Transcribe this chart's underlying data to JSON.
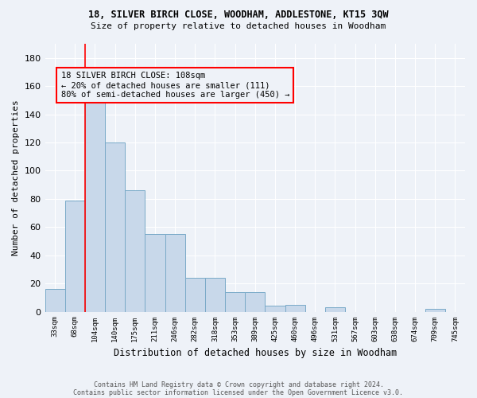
{
  "title1": "18, SILVER BIRCH CLOSE, WOODHAM, ADDLESTONE, KT15 3QW",
  "title2": "Size of property relative to detached houses in Woodham",
  "xlabel": "Distribution of detached houses by size in Woodham",
  "ylabel": "Number of detached properties",
  "bar_color": "#c8d8ea",
  "bar_edge_color": "#7aaac8",
  "categories": [
    "33sqm",
    "68sqm",
    "104sqm",
    "140sqm",
    "175sqm",
    "211sqm",
    "246sqm",
    "282sqm",
    "318sqm",
    "353sqm",
    "389sqm",
    "425sqm",
    "460sqm",
    "496sqm",
    "531sqm",
    "567sqm",
    "603sqm",
    "638sqm",
    "674sqm",
    "709sqm",
    "745sqm"
  ],
  "values": [
    16,
    79,
    150,
    120,
    86,
    55,
    55,
    24,
    24,
    14,
    14,
    4,
    5,
    0,
    3,
    0,
    0,
    0,
    0,
    2,
    0
  ],
  "ylim": [
    0,
    190
  ],
  "yticks": [
    0,
    20,
    40,
    60,
    80,
    100,
    120,
    140,
    160,
    180
  ],
  "red_line_index": 2,
  "annotation_text": "18 SILVER BIRCH CLOSE: 108sqm\n← 20% of detached houses are smaller (111)\n80% of semi-detached houses are larger (450) →",
  "footer1": "Contains HM Land Registry data © Crown copyright and database right 2024.",
  "footer2": "Contains public sector information licensed under the Open Government Licence v3.0.",
  "bg_color": "#eef2f8",
  "grid_color": "#ffffff"
}
